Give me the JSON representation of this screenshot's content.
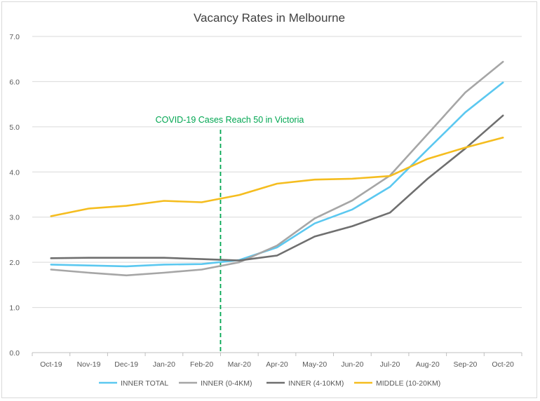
{
  "chart_data": {
    "type": "line",
    "title": "Vacancy Rates in Melbourne",
    "categories": [
      "Oct-19",
      "Nov-19",
      "Dec-19",
      "Jan-20",
      "Feb-20",
      "Mar-20",
      "Apr-20",
      "May-20",
      "Jun-20",
      "Jul-20",
      "Aug-20",
      "Sep-20",
      "Oct-20"
    ],
    "ylim": [
      0,
      7
    ],
    "yticks": [
      "0.0",
      "1.0",
      "2.0",
      "3.0",
      "4.0",
      "5.0",
      "6.0",
      "7.0"
    ],
    "grid": true,
    "legend_position": "bottom",
    "series": [
      {
        "name": "INNER TOTAL",
        "color": "#5bc8f0",
        "values": [
          1.95,
          1.93,
          1.91,
          1.95,
          1.96,
          2.05,
          2.33,
          2.86,
          3.17,
          3.67,
          4.5,
          5.32,
          5.98
        ]
      },
      {
        "name": "INNER (0-4KM)",
        "color": "#a6a6a6",
        "values": [
          1.84,
          1.77,
          1.71,
          1.77,
          1.84,
          2.0,
          2.37,
          2.97,
          3.37,
          3.92,
          4.84,
          5.76,
          6.44
        ]
      },
      {
        "name": "INNER (4-10KM)",
        "color": "#6f6f6f",
        "values": [
          2.09,
          2.1,
          2.1,
          2.1,
          2.07,
          2.04,
          2.15,
          2.57,
          2.8,
          3.1,
          3.85,
          4.52,
          5.25
        ]
      },
      {
        "name": "MIDDLE (10-20KM)",
        "color": "#f5bd1f",
        "values": [
          3.02,
          3.19,
          3.25,
          3.36,
          3.33,
          3.49,
          3.74,
          3.83,
          3.85,
          3.91,
          4.29,
          4.54,
          4.76
        ]
      }
    ],
    "annotation": {
      "text": "COVID-19 Cases Reach 50 in Victoria",
      "color": "#00a651",
      "between": [
        "Feb-20",
        "Mar-20"
      ]
    }
  }
}
